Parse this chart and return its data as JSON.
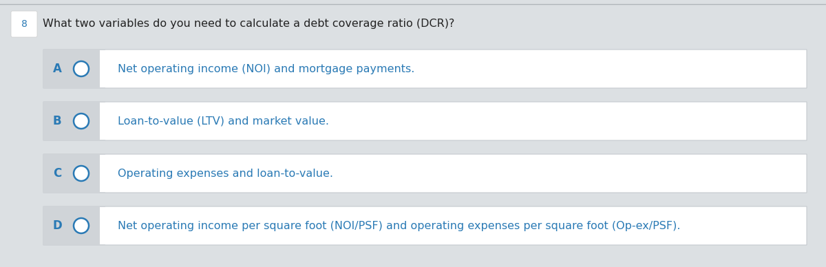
{
  "question_number": "8",
  "question_text": "What two variables do you need to calculate a debt coverage ratio (DCR)?",
  "options": [
    {
      "label": "A",
      "text": "Net operating income (NOI) and mortgage payments."
    },
    {
      "label": "B",
      "text": "Loan-to-value (LTV) and market value."
    },
    {
      "label": "C",
      "text": "Operating expenses and loan-to-value."
    },
    {
      "label": "D",
      "text": "Net operating income per square foot (NOI/PSF) and operating expenses per square foot (Op-ex/PSF)."
    }
  ],
  "bg_color": "#dce0e3",
  "card_bg": "#ffffff",
  "label_bg": "#d0d4d8",
  "label_text_color": "#2a7ab5",
  "option_text_color": "#2a7ab5",
  "question_text_color": "#222222",
  "question_number_color": "#2a7ab5",
  "circle_edge_color": "#2a7ab5",
  "top_line_color": "#b0b5ba",
  "card_border_color": "#c5cacf",
  "qnum_box_color": "#ffffff",
  "qnum_box_border": "#cccccc"
}
